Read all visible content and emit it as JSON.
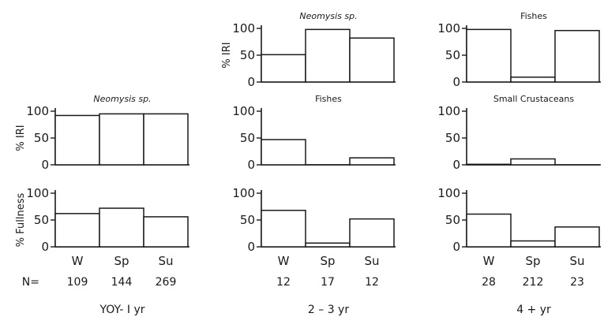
{
  "chart_data": {
    "type": "bar",
    "categories": [
      "W",
      "Sp",
      "Su"
    ],
    "ylim": [
      0,
      100
    ],
    "yticks": [
      0,
      50,
      100
    ],
    "n_label": "N=",
    "groups": [
      {
        "label": "YOY- I yr",
        "n": [
          "109",
          "144",
          "269"
        ]
      },
      {
        "label": "2 – 3 yr",
        "n": [
          "12",
          "17",
          "12"
        ]
      },
      {
        "label": "4 + yr",
        "n": [
          "28",
          "212",
          "23"
        ]
      }
    ],
    "panels": [
      {
        "group": 0,
        "row": 1,
        "title": "Neomysis sp.",
        "ylabel": "% IRI",
        "values": [
          92,
          95,
          95
        ]
      },
      {
        "group": 0,
        "row": 2,
        "title": "",
        "ylabel": "% Fullness",
        "values": [
          62,
          72,
          56
        ]
      },
      {
        "group": 1,
        "row": 0,
        "title": "Neomysis sp.",
        "ylabel": "% IRI",
        "values": [
          51,
          98,
          82
        ]
      },
      {
        "group": 1,
        "row": 1,
        "title": "Fishes",
        "ylabel": "",
        "values": [
          47,
          0,
          13
        ]
      },
      {
        "group": 1,
        "row": 2,
        "title": "",
        "ylabel": "",
        "values": [
          68,
          7,
          52
        ]
      },
      {
        "group": 2,
        "row": 0,
        "title": "Fishes",
        "ylabel": "",
        "values": [
          98,
          9,
          96
        ]
      },
      {
        "group": 2,
        "row": 1,
        "title": "Small Crustaceans",
        "ylabel": "",
        "values": [
          1,
          11,
          0
        ]
      },
      {
        "group": 2,
        "row": 2,
        "title": "",
        "ylabel": "",
        "values": [
          61,
          11,
          37
        ]
      }
    ]
  }
}
